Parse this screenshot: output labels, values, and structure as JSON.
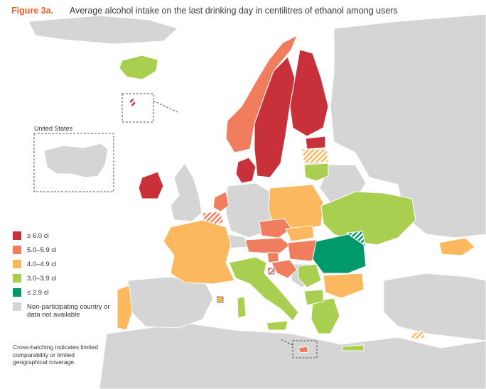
{
  "header": {
    "figure_label": "Figure 3a.",
    "title": "Average alcohol intake on the last drinking day in centilitres of ethanol among users"
  },
  "inset_label": "United States",
  "legend": [
    {
      "label": "≥ 6.0 cl",
      "color": "#c8313a"
    },
    {
      "label": "5.0–5.9 cl",
      "color": "#ef7d5e"
    },
    {
      "label": "4.0–4.9 cl",
      "color": "#fbb85e"
    },
    {
      "label": "3.0–3.9 cl",
      "color": "#a8cf4f"
    },
    {
      "label": "≤ 2.9 cl",
      "color": "#00996b"
    },
    {
      "label": "Non-participating country or data not available",
      "color": "#d5d5d5"
    }
  ],
  "note": "Cross-hatching indicates limited comparability or limited geographical coverage.",
  "colors": {
    "ge6": "#c8313a",
    "c5": "#ef7d5e",
    "c4": "#fbb85e",
    "c3": "#a8cf4f",
    "le29": "#00996b",
    "na": "#d5d5d5",
    "sea": "#ffffff",
    "accent": "#e8642a"
  }
}
